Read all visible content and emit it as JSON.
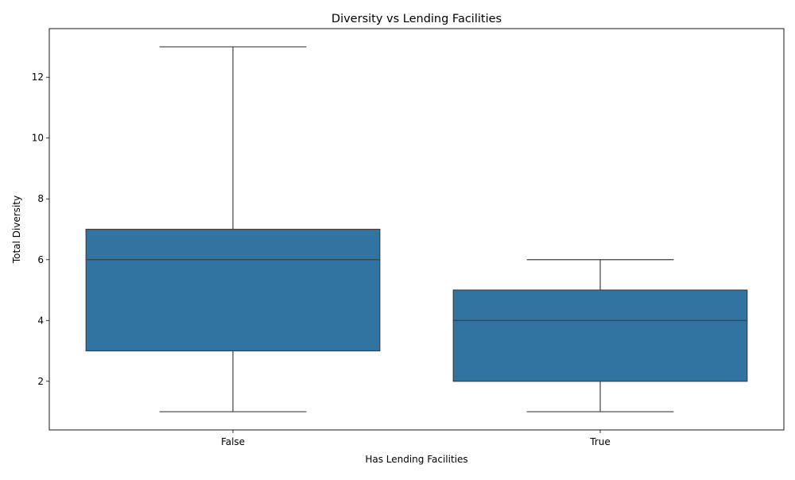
{
  "chart_data": {
    "type": "box",
    "title": "Diversity vs Lending Facilities",
    "xlabel": "Has Lending Facilities",
    "ylabel": "Total Diversity",
    "categories": [
      "False",
      "True"
    ],
    "boxes": [
      {
        "category": "False",
        "whisker_low": 1,
        "q1": 3,
        "median": 6,
        "q3": 7,
        "whisker_high": 13
      },
      {
        "category": "True",
        "whisker_low": 1,
        "q1": 2,
        "median": 4,
        "q3": 5,
        "whisker_high": 6
      }
    ],
    "ylim": [
      0.4,
      13.6
    ],
    "yticks": [
      "2",
      "4",
      "6",
      "8",
      "10",
      "12"
    ],
    "grid": false,
    "colors": {
      "box_fill": "#3274a1",
      "line": "#3f3f3f"
    }
  }
}
